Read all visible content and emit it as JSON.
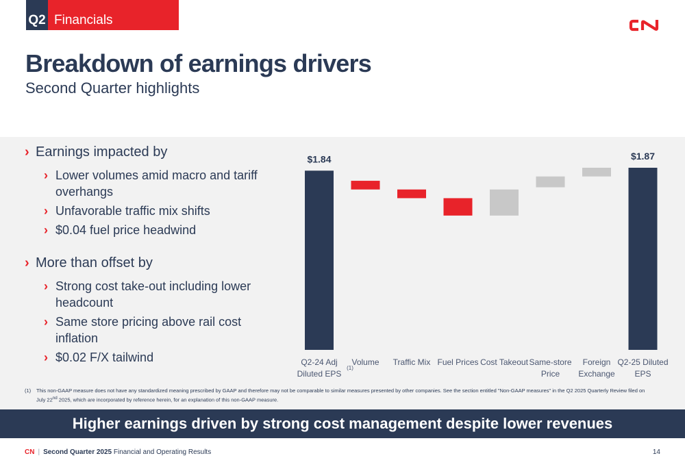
{
  "header": {
    "quarter": "Q2",
    "section": "Financials",
    "title": "Breakdown of earnings drivers",
    "subtitle": "Second Quarter highlights"
  },
  "colors": {
    "navy": "#2b3a55",
    "red": "#e8232a",
    "gray": "#c8c8c8",
    "panel": "#f2f2f2"
  },
  "bullets": {
    "group1": {
      "heading": "Earnings impacted by",
      "items": [
        "Lower volumes amid macro and tariff overhangs",
        "Unfavorable traffic mix shifts",
        "$0.04 fuel price headwind"
      ]
    },
    "group2": {
      "heading": "More than offset by",
      "items": [
        "Strong cost take-out including lower headcount",
        "Same store pricing above rail cost inflation",
        "$0.02 F/X tailwind"
      ]
    }
  },
  "chart_data": {
    "type": "bar",
    "subtype": "waterfall",
    "categories": [
      [
        "Q2-24 Adj",
        "Diluted EPS"
      ],
      [
        "Volume"
      ],
      [
        "Traffic Mix"
      ],
      [
        "Fuel Prices"
      ],
      [
        "Cost Takeout"
      ],
      [
        "Same-store",
        "Price"
      ],
      [
        "Foreign",
        "Exchange"
      ],
      [
        "Q2-25 Diluted",
        "EPS"
      ]
    ],
    "category_footnote": "(1)",
    "steps": [
      {
        "kind": "total",
        "start": 0,
        "end": 1.84,
        "label": "$1.84"
      },
      {
        "kind": "decrease",
        "start": 1.84,
        "end": 1.82
      },
      {
        "kind": "decrease",
        "start": 1.82,
        "end": 1.8
      },
      {
        "kind": "decrease",
        "start": 1.8,
        "end": 1.76
      },
      {
        "kind": "increase",
        "start": 1.76,
        "end": 1.82
      },
      {
        "kind": "increase",
        "start": 1.825,
        "end": 1.85
      },
      {
        "kind": "increase",
        "start": 1.85,
        "end": 1.87
      },
      {
        "kind": "total",
        "start": 0,
        "end": 1.87,
        "label": "$1.87"
      }
    ],
    "axis_visible": false,
    "grid": false,
    "legend": "none"
  },
  "footnote": {
    "mark": "(1)",
    "text_before": "This non-GAAP measure does not have any standardized meaning prescribed by GAAP and therefore may not be comparable to similar measures presented by other companies. See the section entitled \"Non-GAAP measures\" in the Q2 2025 Quarterly Review filed on July 22",
    "superscript": "nd",
    "text_after": " 2025, which are incorporated by reference herein, for an explanation of this non-GAAP measure."
  },
  "banner": "Higher earnings driven by strong cost management despite lower revenues",
  "footer": {
    "brand": "CN",
    "separator": "|",
    "report_bold": "Second Quarter 2025",
    "report_rest": " Financial and Operating Results",
    "page": "14"
  }
}
